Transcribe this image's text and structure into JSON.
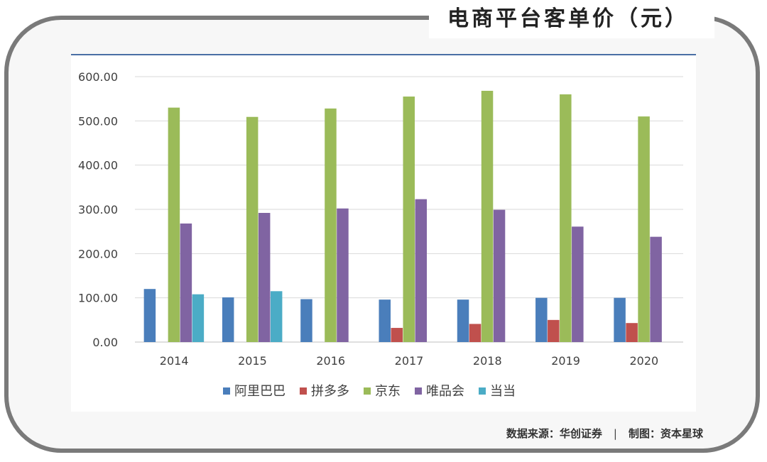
{
  "title": "电商平台客单价（元）",
  "source": {
    "left": "数据来源：华创证券",
    "separator": "|",
    "right": "制图：资本星球"
  },
  "chart_data": {
    "type": "bar",
    "categories": [
      "2014",
      "2015",
      "2016",
      "2017",
      "2018",
      "2019",
      "2020"
    ],
    "ylim": [
      0,
      600
    ],
    "yticks": [
      "0.00",
      "100.00",
      "200.00",
      "300.00",
      "400.00",
      "500.00",
      "600.00"
    ],
    "grid": true,
    "legend_position": "bottom",
    "series": [
      {
        "name": "阿里巴巴",
        "color": "#4a7ebb",
        "values": [
          120,
          101,
          97,
          96,
          96,
          100,
          100
        ]
      },
      {
        "name": "拼多多",
        "color": "#c0504d",
        "values": [
          null,
          null,
          null,
          32,
          41,
          50,
          43
        ]
      },
      {
        "name": "京东",
        "color": "#9bbb59",
        "values": [
          530,
          509,
          528,
          555,
          568,
          560,
          510
        ]
      },
      {
        "name": "唯品会",
        "color": "#8064a2",
        "values": [
          268,
          292,
          302,
          323,
          299,
          261,
          238
        ]
      },
      {
        "name": "当当",
        "color": "#4bacc6",
        "values": [
          108,
          115,
          null,
          null,
          null,
          null,
          null
        ]
      }
    ]
  }
}
